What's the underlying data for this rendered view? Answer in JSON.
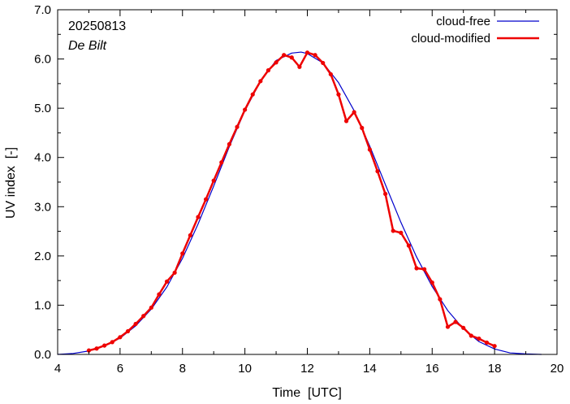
{
  "chart_data": {
    "type": "line",
    "title": "",
    "annotations": {
      "date": "20250813",
      "station": "De Bilt"
    },
    "xlabel": "Time  [UTC]",
    "ylabel": "UV index  [-]",
    "xlim": [
      4,
      20
    ],
    "ylim": [
      0,
      7
    ],
    "x_ticks": [
      "4",
      "6",
      "8",
      "10",
      "12",
      "14",
      "16",
      "18",
      "20"
    ],
    "y_ticks": [
      "0.0",
      "1.0",
      "2.0",
      "3.0",
      "4.0",
      "5.0",
      "6.0",
      "7.0"
    ],
    "grid": false,
    "legend_position": "top-right",
    "series": [
      {
        "name": "cloud-free",
        "color": "#0000cc",
        "markers": false,
        "x": [
          4.0,
          4.5,
          5.0,
          5.5,
          6.0,
          6.5,
          7.0,
          7.5,
          8.0,
          8.5,
          9.0,
          9.5,
          10.0,
          10.5,
          11.0,
          11.5,
          11.8,
          12.0,
          12.5,
          13.0,
          13.5,
          14.0,
          14.5,
          15.0,
          15.5,
          16.0,
          16.5,
          17.0,
          17.5,
          18.0,
          18.5,
          19.0,
          19.5
        ],
        "y": [
          0.0,
          0.02,
          0.07,
          0.17,
          0.33,
          0.58,
          0.92,
          1.37,
          1.95,
          2.65,
          3.42,
          4.22,
          4.95,
          5.55,
          5.97,
          6.12,
          6.14,
          6.11,
          5.92,
          5.52,
          4.95,
          4.23,
          3.45,
          2.68,
          1.98,
          1.38,
          0.89,
          0.52,
          0.26,
          0.11,
          0.03,
          0.01,
          0.0
        ]
      },
      {
        "name": "cloud-modified",
        "color": "#ee0000",
        "markers": true,
        "x": [
          5.0,
          5.25,
          5.5,
          5.75,
          6.0,
          6.25,
          6.5,
          6.75,
          7.0,
          7.25,
          7.5,
          7.75,
          8.0,
          8.25,
          8.5,
          8.75,
          9.0,
          9.25,
          9.5,
          9.75,
          10.0,
          10.25,
          10.5,
          10.75,
          11.0,
          11.25,
          11.5,
          11.75,
          12.0,
          12.25,
          12.5,
          12.75,
          13.0,
          13.25,
          13.5,
          13.75,
          14.0,
          14.25,
          14.5,
          14.75,
          15.0,
          15.25,
          15.5,
          15.75,
          16.0,
          16.25,
          16.5,
          16.75,
          17.0,
          17.25,
          17.5,
          17.75,
          18.0
        ],
        "y": [
          0.08,
          0.12,
          0.18,
          0.25,
          0.35,
          0.47,
          0.62,
          0.78,
          0.95,
          1.22,
          1.48,
          1.66,
          2.05,
          2.42,
          2.79,
          3.15,
          3.53,
          3.9,
          4.27,
          4.62,
          4.97,
          5.28,
          5.55,
          5.77,
          5.93,
          6.08,
          6.03,
          5.84,
          6.13,
          6.08,
          5.92,
          5.69,
          5.28,
          4.74,
          4.92,
          4.6,
          4.16,
          3.72,
          3.26,
          2.51,
          2.47,
          2.21,
          1.75,
          1.73,
          1.46,
          1.12,
          0.56,
          0.66,
          0.54,
          0.38,
          0.32,
          0.24,
          0.17
        ]
      }
    ]
  }
}
